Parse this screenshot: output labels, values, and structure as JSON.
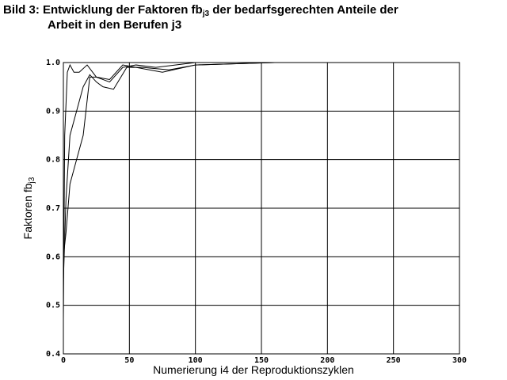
{
  "chart_data": {
    "type": "line",
    "title": [
      "Bild 3: Entwicklung der Faktoren fb",
      "j3",
      " der bedarfsgerechten Anteile der",
      "Arbeit in den Berufen j3"
    ],
    "ylabel": [
      "Faktoren fb",
      "j3"
    ],
    "xlabel": "Numerierung i4 der Reproduktionszyklen",
    "xlim": [
      0,
      300
    ],
    "xticks": [
      0,
      50,
      100,
      150,
      200,
      250,
      300
    ],
    "ylim": [
      0.4,
      1.0
    ],
    "yticks": [
      0.4,
      0.5,
      0.6,
      0.7,
      0.8,
      0.9,
      {
        "value": 1.0,
        "label": "1.0"
      }
    ],
    "grid": true,
    "series": [
      {
        "color": "#000000",
        "x": [
          0,
          1,
          3,
          5,
          8,
          12,
          18,
          25,
          35,
          45,
          55,
          70,
          100,
          160
        ],
        "values": [
          0.47,
          0.85,
          0.98,
          0.995,
          0.98,
          0.98,
          0.995,
          0.97,
          0.96,
          0.99,
          0.995,
          0.99,
          1.0,
          1.0
        ]
      },
      {
        "color": "#000000",
        "x": [
          0,
          2,
          5,
          10,
          15,
          20,
          25,
          30,
          38,
          48,
          60,
          80,
          100,
          160
        ],
        "values": [
          0.55,
          0.72,
          0.85,
          0.9,
          0.95,
          0.975,
          0.96,
          0.95,
          0.945,
          0.99,
          0.99,
          0.985,
          0.995,
          1.0
        ]
      },
      {
        "color": "#000000",
        "x": [
          0,
          2,
          5,
          10,
          15,
          20,
          25,
          35,
          45,
          55,
          75,
          100,
          160
        ],
        "values": [
          0.6,
          0.65,
          0.75,
          0.8,
          0.85,
          0.97,
          0.97,
          0.965,
          0.995,
          0.99,
          0.98,
          0.995,
          1.0
        ]
      }
    ]
  }
}
